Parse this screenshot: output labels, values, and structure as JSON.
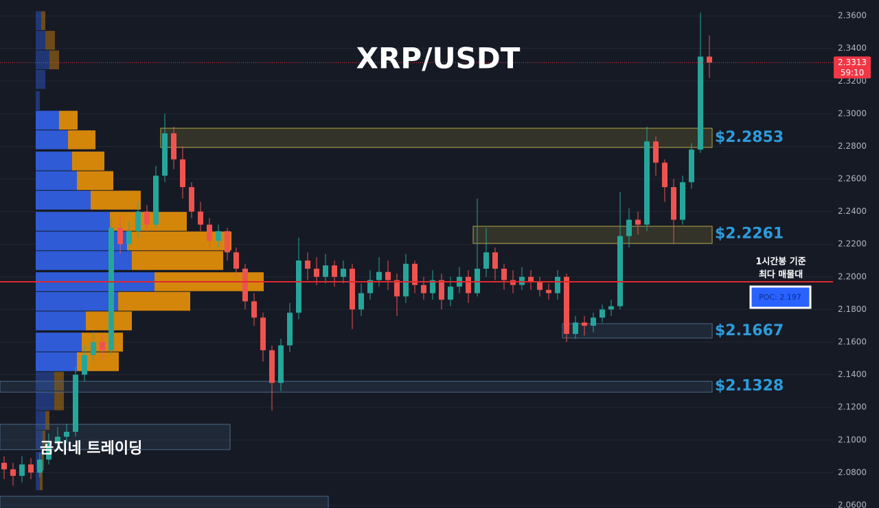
{
  "chart_data": {
    "type": "candlestick",
    "title": "XRP/USDT",
    "watermark": "곰지네 트레이딩",
    "up_color": "#26a69a",
    "down_color": "#ef5350",
    "ylim": [
      2.0583,
      2.3697
    ],
    "yticks": [
      {
        "value": 2.06,
        "label": "2.0600"
      },
      {
        "value": 2.08,
        "label": "2.0800"
      },
      {
        "value": 2.1,
        "label": "2.1000"
      },
      {
        "value": 2.12,
        "label": "2.1200"
      },
      {
        "value": 2.14,
        "label": "2.1400"
      },
      {
        "value": 2.16,
        "label": "2.1600"
      },
      {
        "value": 2.18,
        "label": "2.1800"
      },
      {
        "value": 2.2,
        "label": "2.2000"
      },
      {
        "value": 2.22,
        "label": "2.2200"
      },
      {
        "value": 2.24,
        "label": "2.2400"
      },
      {
        "value": 2.26,
        "label": "2.2600"
      },
      {
        "value": 2.28,
        "label": "2.2800"
      },
      {
        "value": 2.3,
        "label": "2.3000"
      },
      {
        "value": 2.32,
        "label": "2.3200"
      },
      {
        "value": 2.34,
        "label": "2.3400"
      },
      {
        "value": 2.36,
        "label": "2.3600"
      }
    ],
    "grid": true,
    "ohlc": [
      [
        2.086,
        2.09,
        2.076,
        2.082
      ],
      [
        2.082,
        2.086,
        2.072,
        2.078
      ],
      [
        2.078,
        2.09,
        2.074,
        2.085
      ],
      [
        2.085,
        2.089,
        2.076,
        2.08
      ],
      [
        2.08,
        2.092,
        2.077,
        2.088
      ],
      [
        2.088,
        2.104,
        2.085,
        2.098
      ],
      [
        2.098,
        2.108,
        2.094,
        2.102
      ],
      [
        2.102,
        2.11,
        2.098,
        2.105
      ],
      [
        2.105,
        2.145,
        2.102,
        2.14
      ],
      [
        2.14,
        2.158,
        2.136,
        2.152
      ],
      [
        2.152,
        2.166,
        2.148,
        2.16
      ],
      [
        2.16,
        2.165,
        2.15,
        2.155
      ],
      [
        2.155,
        2.236,
        2.152,
        2.23
      ],
      [
        2.23,
        2.238,
        2.214,
        2.22
      ],
      [
        2.22,
        2.234,
        2.216,
        2.228
      ],
      [
        2.228,
        2.246,
        2.224,
        2.24
      ],
      [
        2.24,
        2.244,
        2.228,
        2.232
      ],
      [
        2.232,
        2.268,
        2.23,
        2.262
      ],
      [
        2.262,
        2.3,
        2.258,
        2.288
      ],
      [
        2.288,
        2.292,
        2.266,
        2.272
      ],
      [
        2.272,
        2.28,
        2.248,
        2.255
      ],
      [
        2.255,
        2.258,
        2.236,
        2.24
      ],
      [
        2.24,
        2.246,
        2.228,
        2.232
      ],
      [
        2.232,
        2.236,
        2.218,
        2.222
      ],
      [
        2.222,
        2.232,
        2.218,
        2.228
      ],
      [
        2.228,
        2.23,
        2.21,
        2.215
      ],
      [
        2.215,
        2.218,
        2.2,
        2.205
      ],
      [
        2.205,
        2.208,
        2.18,
        2.185
      ],
      [
        2.185,
        2.19,
        2.17,
        2.175
      ],
      [
        2.175,
        2.178,
        2.148,
        2.155
      ],
      [
        2.155,
        2.158,
        2.118,
        2.135
      ],
      [
        2.135,
        2.162,
        2.13,
        2.158
      ],
      [
        2.158,
        2.184,
        2.154,
        2.178
      ],
      [
        2.178,
        2.224,
        2.174,
        2.21
      ],
      [
        2.21,
        2.215,
        2.198,
        2.205
      ],
      [
        2.205,
        2.212,
        2.195,
        2.2
      ],
      [
        2.2,
        2.214,
        2.196,
        2.207
      ],
      [
        2.207,
        2.21,
        2.194,
        2.2
      ],
      [
        2.2,
        2.21,
        2.196,
        2.205
      ],
      [
        2.205,
        2.208,
        2.168,
        2.18
      ],
      [
        2.18,
        2.196,
        2.176,
        2.19
      ],
      [
        2.19,
        2.204,
        2.186,
        2.198
      ],
      [
        2.198,
        2.212,
        2.194,
        2.203
      ],
      [
        2.203,
        2.21,
        2.192,
        2.198
      ],
      [
        2.198,
        2.202,
        2.176,
        2.188
      ],
      [
        2.188,
        2.214,
        2.184,
        2.208
      ],
      [
        2.208,
        2.21,
        2.19,
        2.195
      ],
      [
        2.195,
        2.2,
        2.186,
        2.19
      ],
      [
        2.19,
        2.204,
        2.186,
        2.198
      ],
      [
        2.198,
        2.202,
        2.18,
        2.186
      ],
      [
        2.186,
        2.2,
        2.182,
        2.194
      ],
      [
        2.194,
        2.206,
        2.19,
        2.2
      ],
      [
        2.2,
        2.204,
        2.184,
        2.19
      ],
      [
        2.19,
        2.248,
        2.188,
        2.205
      ],
      [
        2.205,
        2.23,
        2.2,
        2.215
      ],
      [
        2.215,
        2.218,
        2.198,
        2.205
      ],
      [
        2.205,
        2.208,
        2.192,
        2.198
      ],
      [
        2.198,
        2.204,
        2.19,
        2.195
      ],
      [
        2.195,
        2.206,
        2.192,
        2.2
      ],
      [
        2.2,
        2.204,
        2.192,
        2.197
      ],
      [
        2.197,
        2.2,
        2.188,
        2.192
      ],
      [
        2.192,
        2.196,
        2.186,
        2.19
      ],
      [
        2.19,
        2.204,
        2.186,
        2.2
      ],
      [
        2.2,
        2.202,
        2.16,
        2.165
      ],
      [
        2.165,
        2.176,
        2.162,
        2.172
      ],
      [
        2.172,
        2.176,
        2.164,
        2.17
      ],
      [
        2.17,
        2.178,
        2.166,
        2.175
      ],
      [
        2.175,
        2.183,
        2.172,
        2.18
      ],
      [
        2.18,
        2.186,
        2.176,
        2.182
      ],
      [
        2.182,
        2.252,
        2.18,
        2.225
      ],
      [
        2.225,
        2.242,
        2.218,
        2.235
      ],
      [
        2.235,
        2.24,
        2.226,
        2.232
      ],
      [
        2.232,
        2.292,
        2.228,
        2.283
      ],
      [
        2.283,
        2.286,
        2.262,
        2.27
      ],
      [
        2.27,
        2.272,
        2.246,
        2.255
      ],
      [
        2.255,
        2.26,
        2.22,
        2.235
      ],
      [
        2.235,
        2.262,
        2.232,
        2.258
      ],
      [
        2.258,
        2.282,
        2.254,
        2.278
      ],
      [
        2.278,
        2.362,
        2.276,
        2.335
      ],
      [
        2.335,
        2.348,
        2.322,
        2.3313
      ]
    ],
    "profile": {
      "xlim": [
        0,
        1280
      ],
      "buy_color": "#2f5bd6",
      "sell_color": "#d4860b",
      "value_area": [
        2.142,
        2.302
      ],
      "levels": [
        2.357,
        2.345,
        2.333,
        2.321,
        2.308,
        2.296,
        2.284,
        2.271,
        2.259,
        2.247,
        2.234,
        2.222,
        2.21,
        2.197,
        2.185,
        2.173,
        2.16,
        2.148,
        2.136,
        2.124,
        2.112,
        2.1,
        2.087,
        2.075
      ],
      "buy": [
        8,
        14,
        20,
        14,
        6,
        34,
        47,
        53,
        60,
        80,
        108,
        133,
        140,
        173,
        120,
        73,
        67,
        60,
        27,
        27,
        14,
        10,
        8,
        6
      ],
      "sell": [
        6,
        14,
        14,
        0,
        0,
        27,
        40,
        47,
        53,
        73,
        112,
        152,
        133,
        159,
        105,
        67,
        60,
        61,
        14,
        14,
        6,
        4,
        4,
        4
      ]
    },
    "zones": [
      {
        "low": 2.2793,
        "high": 2.2911,
        "start": 18,
        "end": 79,
        "level": 2.2853,
        "label": "$2.2853",
        "color": "#b5a642"
      },
      {
        "low": 2.2205,
        "high": 2.231,
        "start": 53,
        "end": 79,
        "level": 2.2261,
        "label": "$2.2261",
        "color": "#b5a642"
      },
      {
        "low": 2.1625,
        "high": 2.1713,
        "start": 63,
        "end": 79,
        "level": 2.1667,
        "label": "$2.1667",
        "color": "#4a6a8a"
      },
      {
        "low": 2.1293,
        "high": 2.136,
        "start": 0,
        "end": 79,
        "level": 2.1328,
        "label": "$2.1328",
        "color": "#4a6a8a"
      },
      {
        "low": 2.0941,
        "high": 2.1096,
        "start": 0,
        "end": 25,
        "color": "#4a6a8a"
      },
      {
        "low": 2.055,
        "high": 2.0655,
        "start": 0,
        "end": 36,
        "color": "#4a6a8a"
      }
    ],
    "poc": 2.197,
    "poc_label": "POC: 2.197",
    "annotation": [
      "1시간봉 기준",
      "최다 매물대"
    ],
    "price_tag": {
      "value": 2.3313,
      "label": "2.3313",
      "timer": "59:10"
    }
  }
}
